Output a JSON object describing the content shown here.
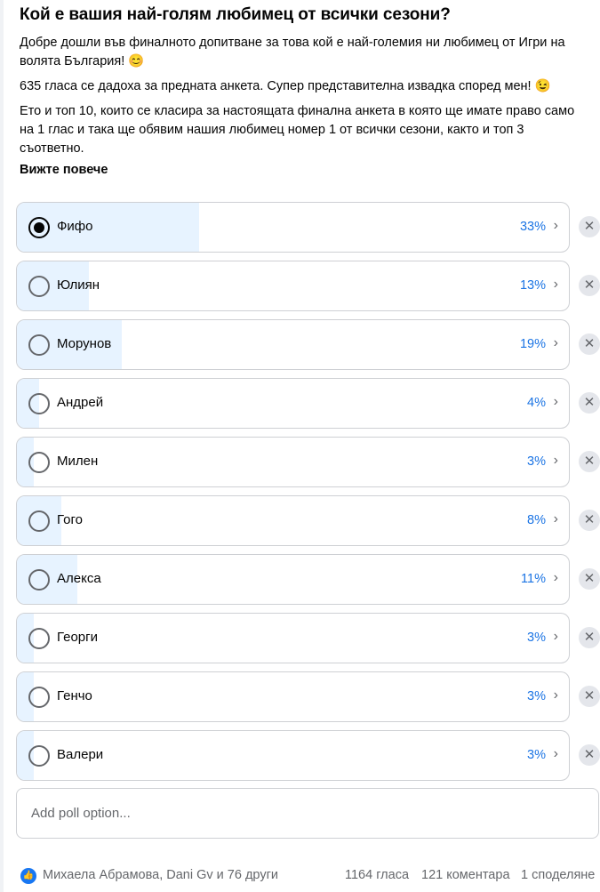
{
  "post": {
    "title": "Кой е вашия най-голям любимец от всички сезони?",
    "paragraphs": [
      "Добре дошли във финалното допитване за това кой е най-големия ни любимец от Игри на волята България! 😊",
      "635 гласа се дадоха за предната анкета. Супер представителна извадка според мен! 😉",
      "Ето и топ 10, които се класира за настоящата финална анкета в която ще имате право само на 1 глас и така ще обявим нашия любимец номер 1 от всички сезони, както и топ 3 съответно."
    ],
    "see_more": "Вижте повече"
  },
  "poll": {
    "options": [
      {
        "label": "Фифо",
        "percent": 33,
        "percent_text": "33%",
        "selected": true
      },
      {
        "label": "Юлиян",
        "percent": 13,
        "percent_text": "13%",
        "selected": false
      },
      {
        "label": "Морунов",
        "percent": 19,
        "percent_text": "19%",
        "selected": false
      },
      {
        "label": "Андрей",
        "percent": 4,
        "percent_text": "4%",
        "selected": false
      },
      {
        "label": "Милен",
        "percent": 3,
        "percent_text": "3%",
        "selected": false
      },
      {
        "label": "Гого",
        "percent": 8,
        "percent_text": "8%",
        "selected": false
      },
      {
        "label": "Алекса",
        "percent": 11,
        "percent_text": "11%",
        "selected": false
      },
      {
        "label": "Георги",
        "percent": 3,
        "percent_text": "3%",
        "selected": false
      },
      {
        "label": "Генчо",
        "percent": 3,
        "percent_text": "3%",
        "selected": false
      },
      {
        "label": "Валери",
        "percent": 3,
        "percent_text": "3%",
        "selected": false
      }
    ],
    "add_placeholder": "Add poll option...",
    "accent": "#1b74e4",
    "fill_color": "#e7f3ff"
  },
  "footer": {
    "reactions": "Михаела Абрамова, Dani Gv и 76 други",
    "votes": "1164 гласа",
    "comments": "121 коментара",
    "shares": "1 споделяне"
  }
}
